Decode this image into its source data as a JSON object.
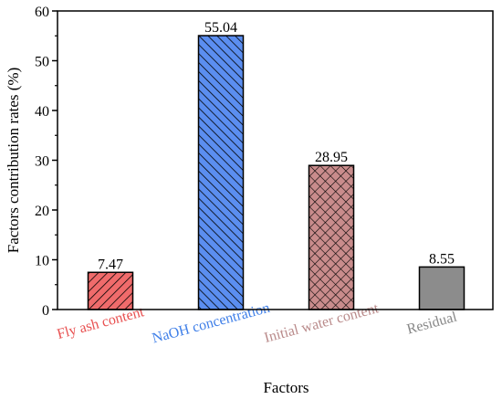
{
  "chart_data": {
    "type": "bar",
    "categories": [
      "Fly ash content",
      "NaOH concentration",
      "Initial water content",
      "Residual"
    ],
    "values": [
      7.47,
      55.04,
      28.95,
      8.55
    ],
    "data_labels": [
      "7.47",
      "55.04",
      "28.95",
      "8.55"
    ],
    "xlabel": "Factors",
    "ylabel": "Factors contribution rates (%)",
    "ylim": [
      0,
      60
    ],
    "yticks": [
      0,
      10,
      20,
      30,
      40,
      50,
      60
    ],
    "grid": false,
    "legend": "none",
    "bar_colors": [
      "#f06b6b",
      "#5b8ef0",
      "#c98c8c",
      "#8c8c8c"
    ],
    "label_colors": [
      "#e85050",
      "#3f7fe8",
      "#b98a8a",
      "#888888"
    ],
    "bar_patterns": [
      "diagonal",
      "back-diagonal",
      "crosshatch",
      "solid"
    ]
  }
}
